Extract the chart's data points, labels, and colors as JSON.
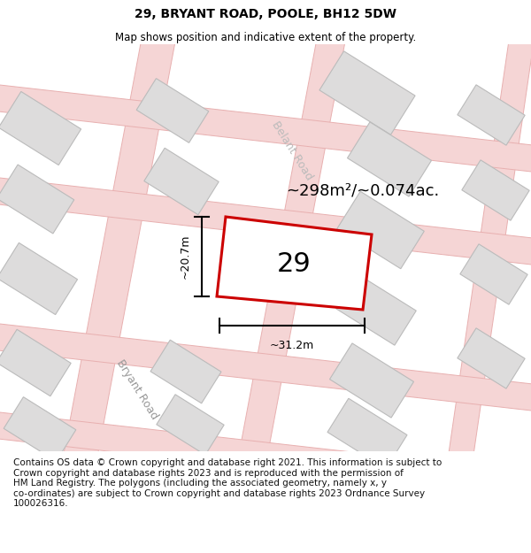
{
  "title": "29, BRYANT ROAD, POOLE, BH12 5DW",
  "subtitle": "Map shows position and indicative extent of the property.",
  "footer": "Contains OS data © Crown copyright and database right 2021. This information is subject to\nCrown copyright and database rights 2023 and is reproduced with the permission of\nHM Land Registry. The polygons (including the associated geometry, namely x, y\nco-ordinates) are subject to Crown copyright and database rights 2023 Ordnance Survey\n100026316.",
  "map_bg": "#f0efef",
  "road_fill": "#f5d5d5",
  "road_edge": "#e8b0b0",
  "building_fill": "#dddcdc",
  "building_edge": "#bbbbbb",
  "prop_fill": "#ffffff",
  "prop_edge": "#cc0000",
  "area_label": "~298m²/~0.074ac.",
  "dim_width": "~31.2m",
  "dim_height": "~20.7m",
  "prop_label": "29",
  "road_label_br": "Bryant Road",
  "road_label_be": "Belant Road",
  "title_fontsize": 10,
  "subtitle_fontsize": 8.5,
  "footer_fontsize": 7.5
}
